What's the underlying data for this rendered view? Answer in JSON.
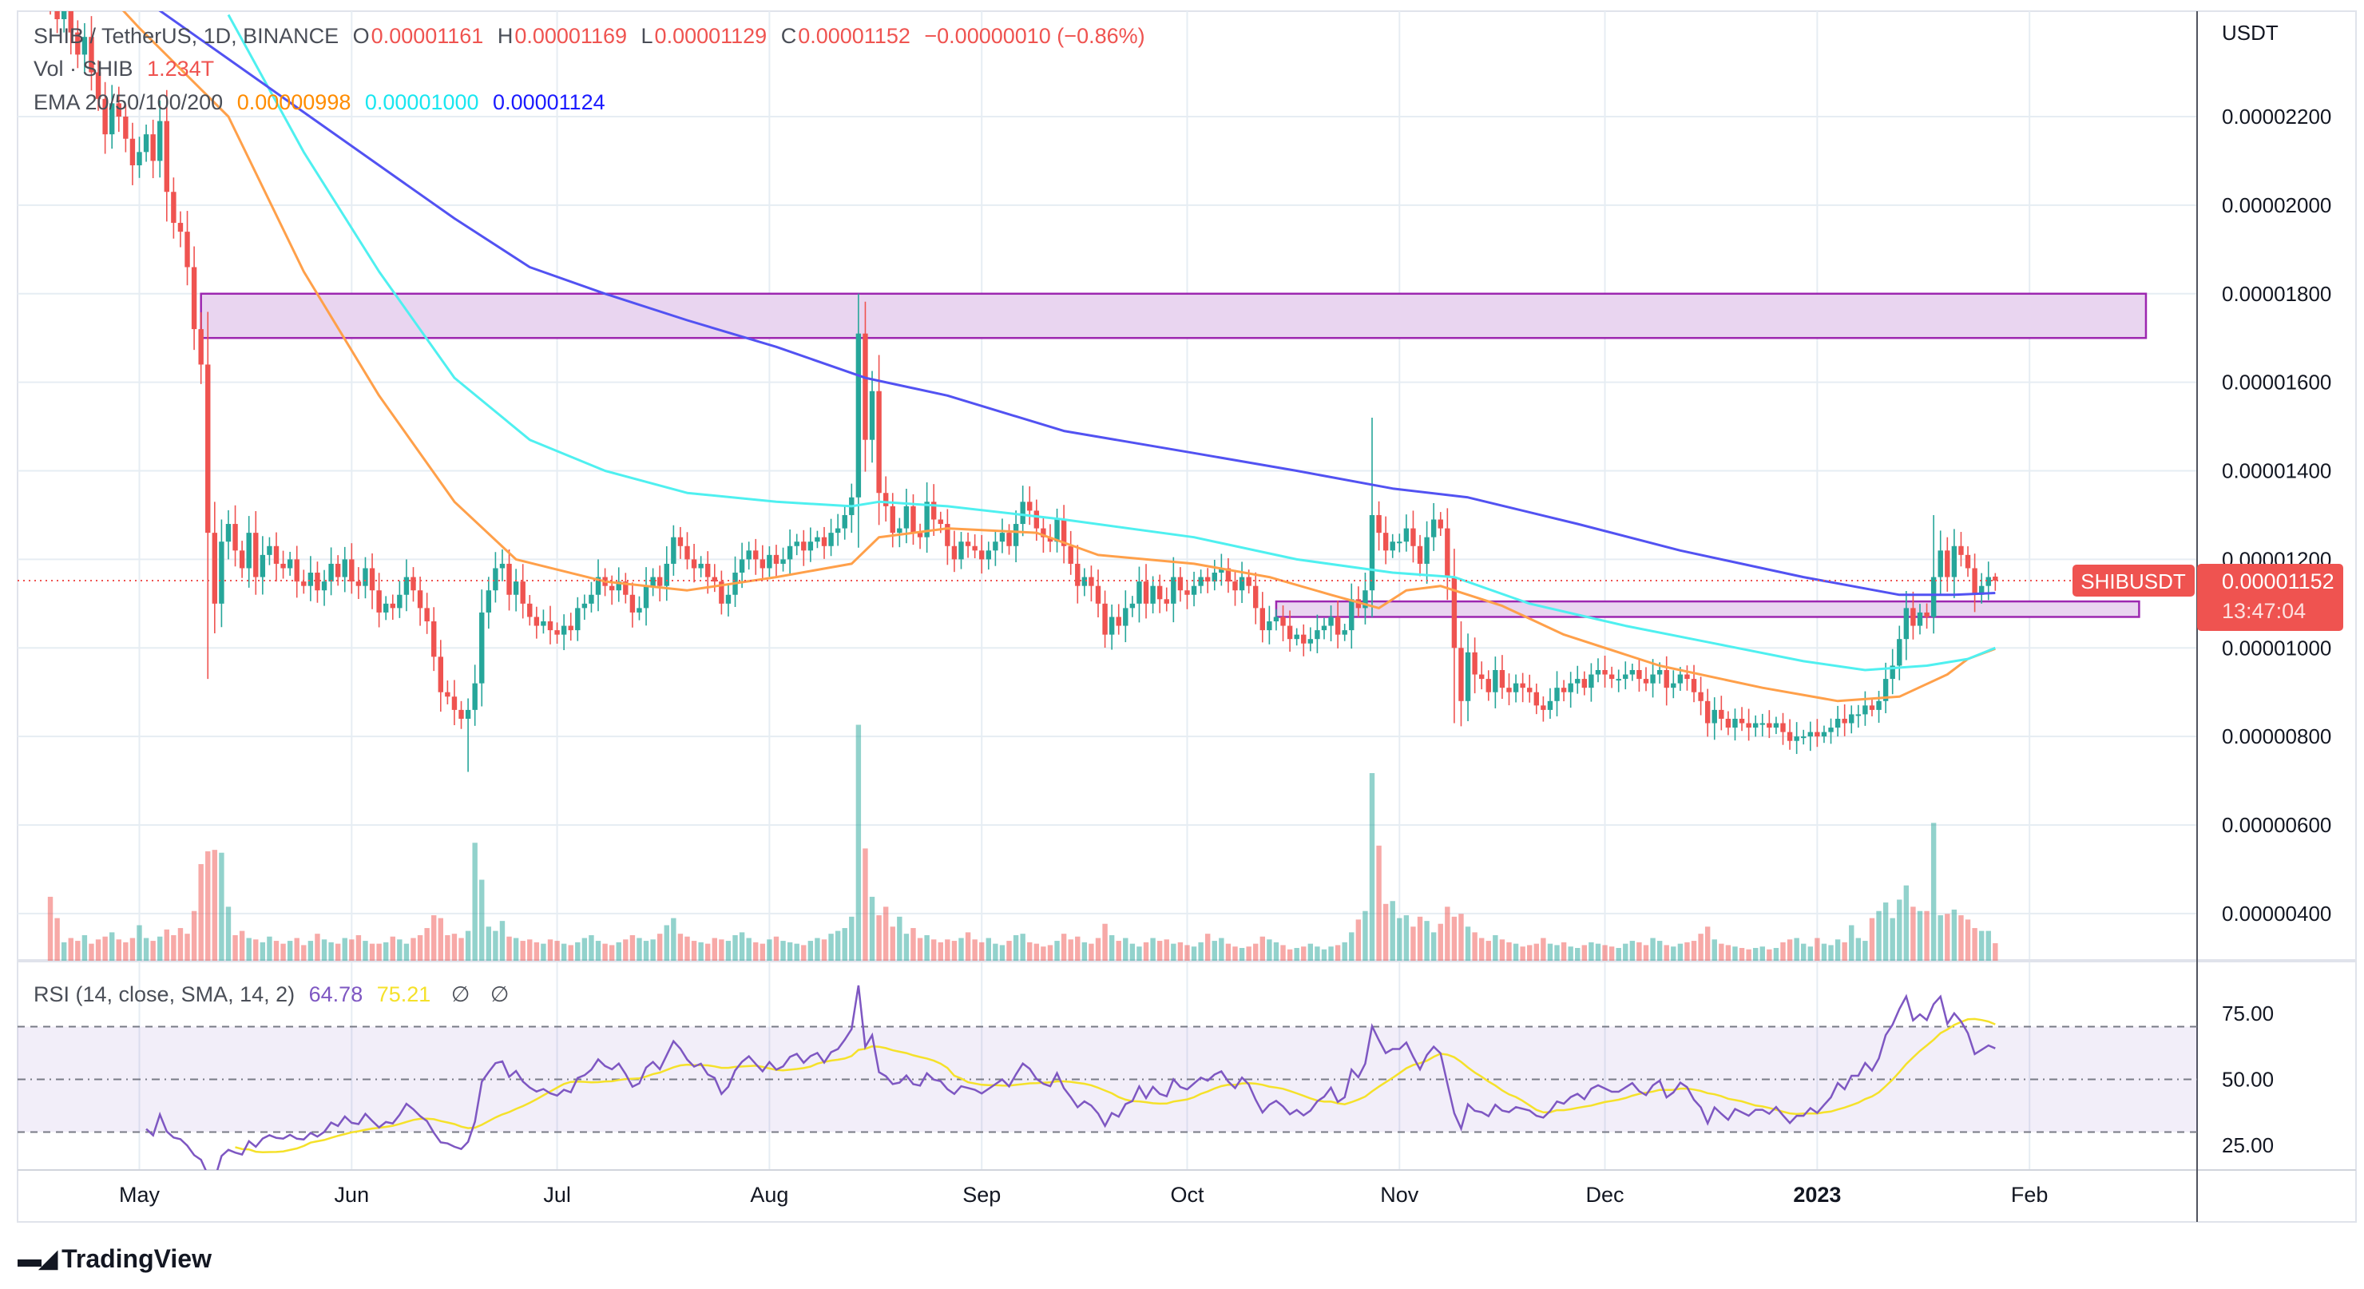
{
  "header": {
    "symbol": "SHIB / TetherUS, 1D, BINANCE",
    "o_label": "O",
    "open": "0.00001161",
    "h_label": "H",
    "high": "0.00001169",
    "l_label": "L",
    "low": "0.00001129",
    "c_label": "C",
    "close": "0.00001152",
    "change": "−0.00000010 (−0.86%)",
    "vol_label": "Vol · SHIB",
    "vol_value": "1.234T",
    "ema_label": "EMA 20/50/100/200",
    "ema_values": [
      "0.00000998",
      "0.00001000",
      "0.00001124"
    ],
    "ema_colors": [
      "#ff8c00",
      "#19e6f0",
      "#1a1aff"
    ]
  },
  "price_axis": {
    "currency": "USDT",
    "labels": [
      "0.00002200",
      "0.00002000",
      "0.00001800",
      "0.00001600",
      "0.00001400",
      "0.00001200",
      "0.00001000",
      "0.00000800",
      "0.00000600",
      "0.00000400"
    ]
  },
  "last_price": {
    "symbol_tag": "SHIBUSDT",
    "price": "0.00001152",
    "countdown": "13:47:04",
    "color": "#ef5350"
  },
  "rsi": {
    "legend": "RSI (14, close, SMA, 14, 2)",
    "value": "64.78",
    "sma_value": "75.21",
    "na_1": "∅",
    "na_2": "∅",
    "axis_labels": [
      "75.00",
      "50.00",
      "25.00"
    ],
    "colors": {
      "rsi": "#7e57c2",
      "sma": "#f5e12a"
    }
  },
  "time_axis": [
    {
      "label": "May",
      "date": "2022-05-01"
    },
    {
      "label": "Jun",
      "date": "2022-06-01"
    },
    {
      "label": "Jul",
      "date": "2022-07-01"
    },
    {
      "label": "Aug",
      "date": "2022-08-01"
    },
    {
      "label": "Sep",
      "date": "2022-09-01"
    },
    {
      "label": "Oct",
      "date": "2022-10-01"
    },
    {
      "label": "Nov",
      "date": "2022-11-01"
    },
    {
      "label": "Dec",
      "date": "2022-12-01"
    },
    {
      "label": "2023",
      "date": "2023-01-01",
      "bold": true
    },
    {
      "label": "Feb",
      "date": "2023-02-01"
    }
  ],
  "branding": {
    "logo_text": "TradingView"
  },
  "colors": {
    "up": "#26a69a",
    "down": "#ef5350",
    "zone_fill": "#e9d5f0",
    "zone_border": "#9c27b0"
  },
  "chart_data": {
    "type": "candlestick",
    "title": "SHIB / TetherUS, 1D, BINANCE",
    "start_date": "2022-04-18",
    "interval": "1D",
    "ylim": [
      2.5e-06,
      2.45e-05
    ],
    "grid": true,
    "closes": [
      2.45e-05,
      2.42e-05,
      2.48e-05,
      2.39e-05,
      2.34e-05,
      2.38e-05,
      2.3e-05,
      2.24e-05,
      2.16e-05,
      2.23e-05,
      2.2e-05,
      2.15e-05,
      2.09e-05,
      2.12e-05,
      2.16e-05,
      2.1e-05,
      2.19e-05,
      2.03e-05,
      1.96e-05,
      1.94e-05,
      1.86e-05,
      1.72e-05,
      1.64e-05,
      1.26e-05,
      1.1e-05,
      1.24e-05,
      1.28e-05,
      1.22e-05,
      1.18e-05,
      1.26e-05,
      1.16e-05,
      1.21e-05,
      1.23e-05,
      1.19e-05,
      1.18e-05,
      1.2e-05,
      1.15e-05,
      1.14e-05,
      1.17e-05,
      1.13e-05,
      1.15e-05,
      1.19e-05,
      1.16e-05,
      1.2e-05,
      1.15e-05,
      1.14e-05,
      1.18e-05,
      1.13e-05,
      1.08e-05,
      1.1e-05,
      1.09e-05,
      1.12e-05,
      1.16e-05,
      1.13e-05,
      1.09e-05,
      1.06e-05,
      9.8e-06,
      9e-06,
      8.9e-06,
      8.6e-06,
      8.4e-06,
      8.6e-06,
      9.2e-06,
      1.08e-05,
      1.13e-05,
      1.18e-05,
      1.19e-05,
      1.12e-05,
      1.15e-05,
      1.1e-05,
      1.07e-05,
      1.05e-05,
      1.06e-05,
      1.04e-05,
      1.03e-05,
      1.05e-05,
      1.04e-05,
      1.09e-05,
      1.1e-05,
      1.12e-05,
      1.16e-05,
      1.14e-05,
      1.13e-05,
      1.15e-05,
      1.12e-05,
      1.08e-05,
      1.09e-05,
      1.14e-05,
      1.16e-05,
      1.14e-05,
      1.19e-05,
      1.25e-05,
      1.23e-05,
      1.2e-05,
      1.18e-05,
      1.19e-05,
      1.16e-05,
      1.15e-05,
      1.1e-05,
      1.12e-05,
      1.17e-05,
      1.2e-05,
      1.22e-05,
      1.2e-05,
      1.18e-05,
      1.21e-05,
      1.19e-05,
      1.2e-05,
      1.23e-05,
      1.24e-05,
      1.22e-05,
      1.24e-05,
      1.25e-05,
      1.23e-05,
      1.26e-05,
      1.27e-05,
      1.3e-05,
      1.34e-05,
      1.71e-05,
      1.47e-05,
      1.58e-05,
      1.35e-05,
      1.32e-05,
      1.26e-05,
      1.27e-05,
      1.32e-05,
      1.26e-05,
      1.25e-05,
      1.33e-05,
      1.29e-05,
      1.28e-05,
      1.23e-05,
      1.2e-05,
      1.24e-05,
      1.23e-05,
      1.22e-05,
      1.2e-05,
      1.22e-05,
      1.24e-05,
      1.26e-05,
      1.23e-05,
      1.28e-05,
      1.33e-05,
      1.31e-05,
      1.27e-05,
      1.25e-05,
      1.24e-05,
      1.29e-05,
      1.23e-05,
      1.19e-05,
      1.14e-05,
      1.16e-05,
      1.14e-05,
      1.1e-05,
      1.03e-05,
      1.07e-05,
      1.05e-05,
      1.09e-05,
      1.1e-05,
      1.15e-05,
      1.1e-05,
      1.14e-05,
      1.11e-05,
      1.1e-05,
      1.16e-05,
      1.13e-05,
      1.12e-05,
      1.14e-05,
      1.16e-05,
      1.15e-05,
      1.17e-05,
      1.18e-05,
      1.15e-05,
      1.13e-05,
      1.16e-05,
      1.14e-05,
      1.09e-05,
      1.04e-05,
      1.06e-05,
      1.07e-05,
      1.05e-05,
      1.02e-05,
      1.03e-05,
      1.01e-05,
      1.02e-05,
      1.04e-05,
      1.05e-05,
      1.07e-05,
      1.03e-05,
      1.04e-05,
      1.11e-05,
      1.09e-05,
      1.13e-05,
      1.3e-05,
      1.26e-05,
      1.22e-05,
      1.24e-05,
      1.24e-05,
      1.27e-05,
      1.23e-05,
      1.19e-05,
      1.25e-05,
      1.29e-05,
      1.27e-05,
      1.16e-05,
      1e-05,
      8.8e-06,
      9.9e-06,
      9.4e-06,
      9.3e-06,
      9e-06,
      9.5e-06,
      9.1e-06,
      9e-06,
      9.2e-06,
      9.1e-06,
      9e-06,
      8.7e-06,
      8.6e-06,
      8.8e-06,
      9.1e-06,
      9e-06,
      9.2e-06,
      9.3e-06,
      9.1e-06,
      9.4e-06,
      9.5e-06,
      9.4e-06,
      9.3e-06,
      9.3e-06,
      9.4e-06,
      9.5e-06,
      9.3e-06,
      9.2e-06,
      9.4e-06,
      9.5e-06,
      9.1e-06,
      9.2e-06,
      9.4e-06,
      9.3e-06,
      9e-06,
      8.8e-06,
      8.3e-06,
      8.6e-06,
      8.4e-06,
      8.2e-06,
      8.4e-06,
      8.3e-06,
      8.2e-06,
      8.3e-06,
      8.3e-06,
      8.2e-06,
      8.3e-06,
      8.1e-06,
      7.9e-06,
      8e-06,
      8e-06,
      8.1e-06,
      8e-06,
      8.1e-06,
      8.2e-06,
      8.4e-06,
      8.3e-06,
      8.5e-06,
      8.5e-06,
      8.7e-06,
      8.6e-06,
      8.8e-06,
      9.3e-06,
      9.6e-06,
      1.02e-05,
      1.09e-05,
      1.05e-05,
      1.08e-05,
      1.07e-05,
      1.16e-05,
      1.22e-05,
      1.16e-05,
      1.23e-05,
      1.21e-05,
      1.18e-05,
      1.12e-05,
      1.14e-05,
      1.16e-05,
      1.152e-05
    ],
    "extremes": [
      {
        "date": "2022-05-11",
        "low": 9.3e-06
      },
      {
        "date": "2022-06-18",
        "low": 7.2e-06
      },
      {
        "date": "2022-08-14",
        "high": 1.8e-05
      },
      {
        "date": "2022-10-28",
        "high": 1.52e-05
      },
      {
        "date": "2022-11-09",
        "low": 8.3e-06
      },
      {
        "date": "2023-01-18",
        "high": 1.3e-05
      },
      {
        "date": "2023-01-27",
        "high": 1.169e-05,
        "low": 1.129e-05,
        "open": 1.161e-05
      }
    ],
    "volume_unit": "T",
    "volumes": [
      4.5,
      3.0,
      1.3,
      1.6,
      1.4,
      1.8,
      1.2,
      1.5,
      1.7,
      2.0,
      1.5,
      1.3,
      1.6,
      2.5,
      1.6,
      1.4,
      1.7,
      2.2,
      1.8,
      2.3,
      1.9,
      3.5,
      6.8,
      7.7,
      7.8,
      7.6,
      3.8,
      1.8,
      2.1,
      1.6,
      1.5,
      1.3,
      1.7,
      1.4,
      1.2,
      1.4,
      1.6,
      1.1,
      1.4,
      1.9,
      1.5,
      1.3,
      1.2,
      1.6,
      1.5,
      1.8,
      1.4,
      1.2,
      1.2,
      1.3,
      1.7,
      1.5,
      1.2,
      1.6,
      1.8,
      2.3,
      3.2,
      3.0,
      1.8,
      1.9,
      1.6,
      2.1,
      8.3,
      5.7,
      2.4,
      2.1,
      2.8,
      1.7,
      1.6,
      1.4,
      1.5,
      1.3,
      1.2,
      1.5,
      1.4,
      1.2,
      1.1,
      1.3,
      1.6,
      1.8,
      1.4,
      1.2,
      1.1,
      1.3,
      1.5,
      1.8,
      1.6,
      1.4,
      1.5,
      1.9,
      2.5,
      3.0,
      1.9,
      1.7,
      1.4,
      1.3,
      1.2,
      1.6,
      1.5,
      1.4,
      1.8,
      2.0,
      1.6,
      1.3,
      1.2,
      1.5,
      1.7,
      1.4,
      1.3,
      1.2,
      1.1,
      1.4,
      1.6,
      1.5,
      1.9,
      2.1,
      2.3,
      3.1,
      16.6,
      7.9,
      4.5,
      3.2,
      3.8,
      2.4,
      3.1,
      1.9,
      2.3,
      1.6,
      1.8,
      1.5,
      1.3,
      1.5,
      1.4,
      1.6,
      2.0,
      1.5,
      1.3,
      1.6,
      1.2,
      1.1,
      1.4,
      1.8,
      1.9,
      1.3,
      1.2,
      1.0,
      1.1,
      1.4,
      1.9,
      1.5,
      1.7,
      1.3,
      1.2,
      1.6,
      2.6,
      1.8,
      1.4,
      1.6,
      1.2,
      1.0,
      1.3,
      1.6,
      1.4,
      1.5,
      1.2,
      1.3,
      1.1,
      1.0,
      1.3,
      1.9,
      1.4,
      1.6,
      1.2,
      1.0,
      0.9,
      1.0,
      1.2,
      1.7,
      1.5,
      1.3,
      1.1,
      0.8,
      0.9,
      1.0,
      1.2,
      1.0,
      0.8,
      1.0,
      1.1,
      1.3,
      2.0,
      2.9,
      3.5,
      13.2,
      8.1,
      4.0,
      4.2,
      3.0,
      3.2,
      2.4,
      3.1,
      2.8,
      2.0,
      2.6,
      3.8,
      3.1,
      3.3,
      2.4,
      2.0,
      1.6,
      1.4,
      1.8,
      1.5,
      1.3,
      1.2,
      1.0,
      1.1,
      1.2,
      1.6,
      1.2,
      1.1,
      1.3,
      1.0,
      0.9,
      1.1,
      1.3,
      1.2,
      1.1,
      1.0,
      0.9,
      1.2,
      1.4,
      1.3,
      1.1,
      1.6,
      1.4,
      1.1,
      1.0,
      1.2,
      1.3,
      1.4,
      1.9,
      2.4,
      1.5,
      1.2,
      1.1,
      1.0,
      0.9,
      0.8,
      0.9,
      1.0,
      0.8,
      0.9,
      1.3,
      1.5,
      1.6,
      1.2,
      1.0,
      1.6,
      1.2,
      1.1,
      1.5,
      1.3,
      2.5,
      1.6,
      1.4,
      3.0,
      3.5,
      4.1,
      3.0,
      4.3,
      5.3,
      3.8,
      3.5,
      3.5,
      9.7,
      3.2,
      3.3,
      3.6,
      3.2,
      2.9,
      2.3,
      2.1,
      2.1,
      1.234
    ],
    "ema_lines": [
      {
        "period": 20,
        "color": "#ffa04a",
        "points": [
          [
            "2022-04-25",
            2.5e-05
          ],
          [
            "2022-05-01",
            2.4e-05
          ],
          [
            "2022-05-14",
            2.2e-05
          ],
          [
            "2022-05-25",
            1.85e-05
          ],
          [
            "2022-06-05",
            1.57e-05
          ],
          [
            "2022-06-16",
            1.33e-05
          ],
          [
            "2022-06-25",
            1.2e-05
          ],
          [
            "2022-07-08",
            1.15e-05
          ],
          [
            "2022-07-20",
            1.13e-05
          ],
          [
            "2022-08-02",
            1.16e-05
          ],
          [
            "2022-08-13",
            1.19e-05
          ],
          [
            "2022-08-17",
            1.25e-05
          ],
          [
            "2022-08-27",
            1.27e-05
          ],
          [
            "2022-09-09",
            1.26e-05
          ],
          [
            "2022-09-18",
            1.21e-05
          ],
          [
            "2022-10-02",
            1.19e-05
          ],
          [
            "2022-10-13",
            1.16e-05
          ],
          [
            "2022-10-22",
            1.12e-05
          ],
          [
            "2022-10-29",
            1.09e-05
          ],
          [
            "2022-11-02",
            1.13e-05
          ],
          [
            "2022-11-07",
            1.14e-05
          ],
          [
            "2022-11-16",
            1.095e-05
          ],
          [
            "2022-11-25",
            1.03e-05
          ],
          [
            "2022-12-09",
            9.6e-06
          ],
          [
            "2022-12-24",
            9.1e-06
          ],
          [
            "2023-01-04",
            8.8e-06
          ],
          [
            "2023-01-13",
            8.9e-06
          ],
          [
            "2023-01-20",
            9.4e-06
          ],
          [
            "2023-01-23",
            9.75e-06
          ],
          [
            "2023-01-27",
            9.98e-06
          ]
        ]
      },
      {
        "period": 50,
        "color": "#4ff0f0",
        "points": [
          [
            "2022-05-14",
            2.43e-05
          ],
          [
            "2022-05-25",
            2.12e-05
          ],
          [
            "2022-06-05",
            1.85e-05
          ],
          [
            "2022-06-16",
            1.61e-05
          ],
          [
            "2022-06-27",
            1.47e-05
          ],
          [
            "2022-07-08",
            1.4e-05
          ],
          [
            "2022-07-20",
            1.35e-05
          ],
          [
            "2022-08-02",
            1.33e-05
          ],
          [
            "2022-08-13",
            1.32e-05
          ],
          [
            "2022-08-17",
            1.33e-05
          ],
          [
            "2022-08-27",
            1.32e-05
          ],
          [
            "2022-09-13",
            1.29e-05
          ],
          [
            "2022-10-02",
            1.25e-05
          ],
          [
            "2022-10-17",
            1.2e-05
          ],
          [
            "2022-10-31",
            1.17e-05
          ],
          [
            "2022-11-09",
            1.16e-05
          ],
          [
            "2022-11-20",
            1.1e-05
          ],
          [
            "2022-12-04",
            1.05e-05
          ],
          [
            "2022-12-17",
            1.01e-05
          ],
          [
            "2022-12-30",
            9.7e-06
          ],
          [
            "2023-01-08",
            9.5e-06
          ],
          [
            "2023-01-17",
            9.6e-06
          ],
          [
            "2023-01-23",
            9.75e-06
          ],
          [
            "2023-01-27",
            1e-05
          ]
        ]
      },
      {
        "period": 200,
        "color": "#5252f2",
        "points": [
          [
            "2022-05-03",
            2.45e-05
          ],
          [
            "2022-05-14",
            2.33e-05
          ],
          [
            "2022-05-25",
            2.21e-05
          ],
          [
            "2022-06-05",
            2.09e-05
          ],
          [
            "2022-06-16",
            1.97e-05
          ],
          [
            "2022-06-27",
            1.86e-05
          ],
          [
            "2022-07-08",
            1.8e-05
          ],
          [
            "2022-07-20",
            1.74e-05
          ],
          [
            "2022-08-02",
            1.68e-05
          ],
          [
            "2022-08-15",
            1.61e-05
          ],
          [
            "2022-08-27",
            1.57e-05
          ],
          [
            "2022-09-13",
            1.49e-05
          ],
          [
            "2022-10-02",
            1.44e-05
          ],
          [
            "2022-10-17",
            1.4e-05
          ],
          [
            "2022-10-31",
            1.36e-05
          ],
          [
            "2022-11-11",
            1.34e-05
          ],
          [
            "2022-11-27",
            1.28e-05
          ],
          [
            "2022-12-12",
            1.22e-05
          ],
          [
            "2022-12-30",
            1.16e-05
          ],
          [
            "2023-01-13",
            1.12e-05
          ],
          [
            "2023-01-21",
            1.12e-05
          ],
          [
            "2023-01-27",
            1.124e-05
          ]
        ]
      }
    ],
    "zones": [
      {
        "from": "2022-05-10",
        "to": "2023-02-18",
        "low": 1.7e-05,
        "high": 1.8e-05
      },
      {
        "from": "2022-10-14",
        "to": "2023-02-17",
        "low": 1.07e-05,
        "high": 1.105e-05
      }
    ],
    "rsi_bands": [
      70,
      50,
      30
    ],
    "rsi_ylim": [
      15,
      90
    ]
  }
}
